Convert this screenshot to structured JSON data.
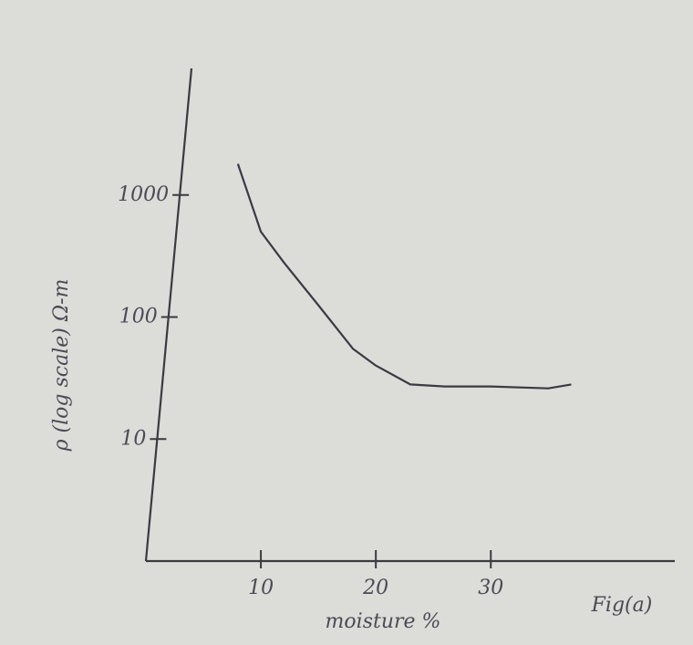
{
  "chart_data": {
    "type": "line",
    "y_label": "ρ (log scale) Ω-m",
    "x_label": "moisture %",
    "annotation": "Fig(a)",
    "x": [
      8,
      10,
      12,
      15,
      18,
      20,
      23,
      26,
      30,
      35,
      37
    ],
    "values": [
      1800,
      500,
      280,
      125,
      55,
      40,
      28,
      27,
      27,
      26,
      28
    ],
    "color": "#3a3a44",
    "xlim": [
      0,
      46
    ],
    "xticks": [
      10,
      20,
      30
    ],
    "ylim": [
      1,
      10000
    ],
    "yticks": [
      10,
      100,
      1000
    ],
    "y_scale": "log",
    "grid": false
  }
}
